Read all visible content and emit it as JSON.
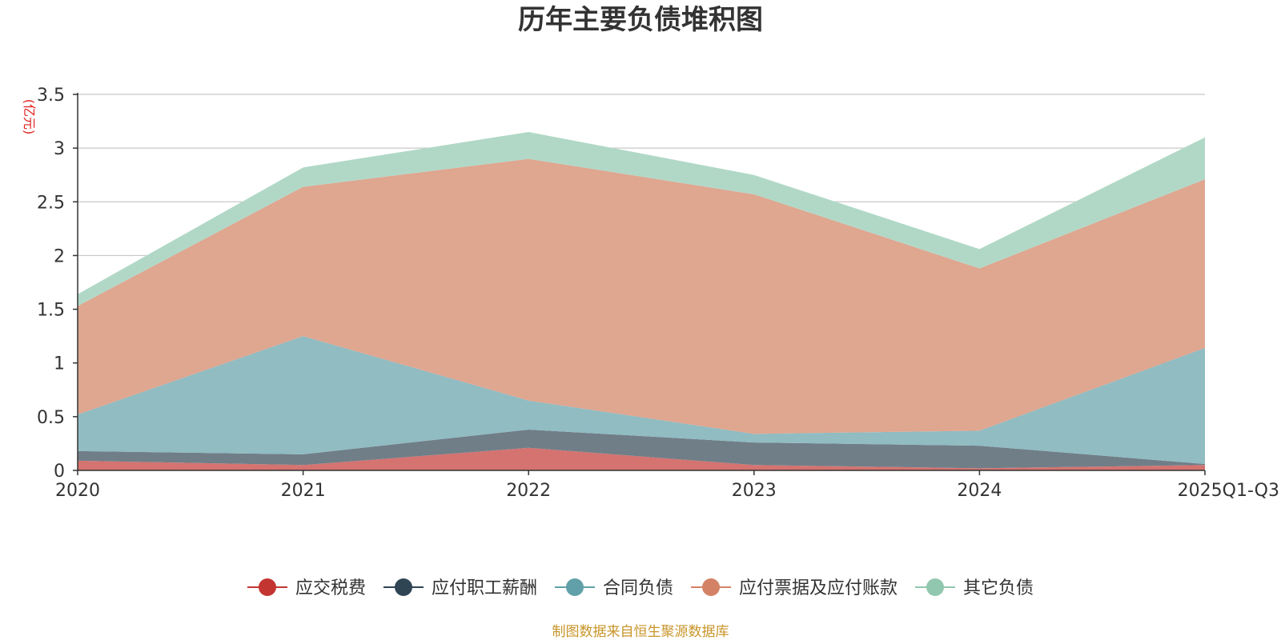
{
  "colors": {
    "background": "#ffffff",
    "grid": "#c8c8c8",
    "axis": "#333333",
    "text": "#333333",
    "unit": "#e02020",
    "source": "#c8952a"
  },
  "chart_data": {
    "type": "area",
    "stacked": true,
    "title": "历年主要负债堆积图",
    "ylabel": "(亿元)",
    "xlabel": "",
    "ylim": [
      0,
      3.5
    ],
    "yticks": [
      0,
      0.5,
      1,
      1.5,
      2,
      2.5,
      3,
      3.5
    ],
    "ytick_labels": [
      "0",
      "0.5",
      "1",
      "1.5",
      "2",
      "2.5",
      "3",
      "3.5"
    ],
    "grid": true,
    "legend_position": "bottom-center",
    "categories": [
      "2020",
      "2021",
      "2022",
      "2023",
      "2024",
      "2025Q1-Q3"
    ],
    "series": [
      {
        "name": "应交税费",
        "color": "#c23531",
        "fill": "#d47370",
        "values": [
          0.09,
          0.05,
          0.21,
          0.05,
          0.02,
          0.05
        ]
      },
      {
        "name": "应付职工薪酬",
        "color": "#2f4554",
        "fill": "#707e88",
        "values": [
          0.09,
          0.1,
          0.17,
          0.21,
          0.21,
          0.01
        ]
      },
      {
        "name": "合同负债",
        "color": "#61a0a8",
        "fill": "#90bcc2",
        "values": [
          0.34,
          1.1,
          0.27,
          0.08,
          0.14,
          1.08
        ]
      },
      {
        "name": "应付票据及应付账款",
        "color": "#d48265",
        "fill": "#dfa690",
        "values": [
          1.01,
          1.39,
          2.25,
          2.23,
          1.51,
          1.57
        ]
      },
      {
        "name": "其它负债",
        "color": "#91c7ae",
        "fill": "#b1d8c7",
        "values": [
          0.11,
          0.18,
          0.25,
          0.18,
          0.18,
          0.39
        ]
      }
    ]
  },
  "footer": {
    "source_text": "制图数据来自恒生聚源数据库"
  }
}
